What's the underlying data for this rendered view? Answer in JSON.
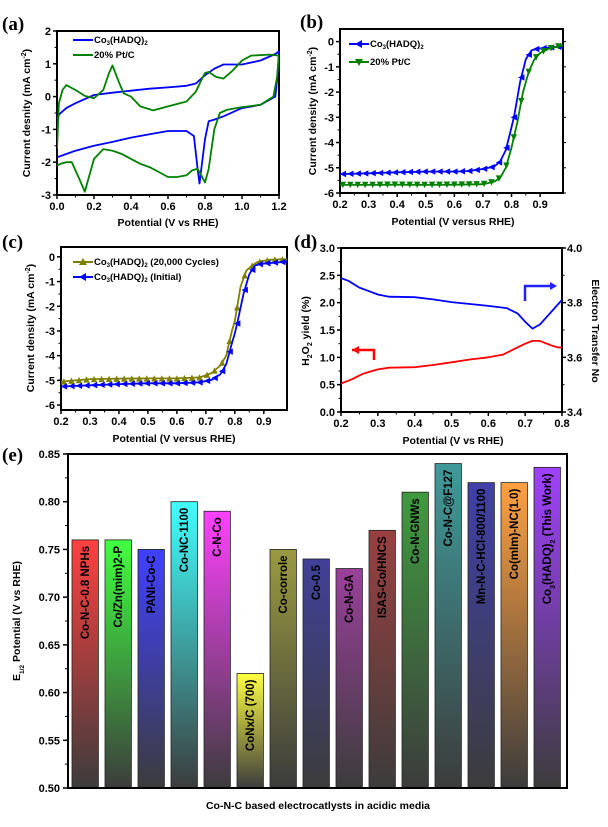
{
  "chart_data": [
    {
      "panel": "(a)",
      "type": "line",
      "title": "",
      "xlabel": "Potential (V vs RHE)",
      "ylabel": "Current desnity (mA cm-2)",
      "xlim": [
        0.0,
        1.2
      ],
      "ylim": [
        -3,
        2
      ],
      "xticks": [
        "0.0",
        "0.2",
        "0.4",
        "0.6",
        "0.8",
        "1.0",
        "1.2"
      ],
      "yticks": [
        "-3",
        "-2",
        "-1",
        "0",
        "1",
        "2"
      ],
      "legend_position": "top-left",
      "series": [
        {
          "name": "Co3(HADQ)2",
          "color": "#0000ff",
          "x": [
            0.0,
            0.01,
            0.05,
            0.1,
            0.2,
            0.3,
            0.4,
            0.5,
            0.6,
            0.7,
            0.75,
            0.8,
            0.85,
            0.9,
            1.0,
            1.1,
            1.18,
            1.2,
            1.19,
            1.18,
            1.1,
            1.0,
            0.9,
            0.85,
            0.82,
            0.8,
            0.78,
            0.77,
            0.76,
            0.74,
            0.7,
            0.6,
            0.5,
            0.4,
            0.3,
            0.2,
            0.1,
            0.05,
            0.0
          ],
          "y": [
            -0.75,
            -0.55,
            -0.35,
            -0.2,
            0.05,
            0.12,
            0.18,
            0.24,
            0.28,
            0.33,
            0.4,
            0.65,
            0.85,
            0.98,
            0.98,
            1.1,
            1.3,
            1.38,
            0.5,
            0.0,
            -0.25,
            -0.35,
            -0.6,
            -0.7,
            -0.75,
            -1.3,
            -2.2,
            -2.65,
            -2.2,
            -1.2,
            -1.05,
            -1.05,
            -1.15,
            -1.25,
            -1.38,
            -1.5,
            -1.65,
            -1.75,
            -1.85
          ]
        },
        {
          "name": "20% Pt/C",
          "color": "#008000",
          "x": [
            0.0,
            0.01,
            0.03,
            0.05,
            0.1,
            0.15,
            0.2,
            0.25,
            0.28,
            0.3,
            0.33,
            0.36,
            0.4,
            0.45,
            0.52,
            0.6,
            0.7,
            0.75,
            0.78,
            0.8,
            0.82,
            0.86,
            0.9,
            0.95,
            1.0,
            1.05,
            1.15,
            1.2,
            1.19,
            1.17,
            1.1,
            1.0,
            0.92,
            0.88,
            0.85,
            0.82,
            0.8,
            0.78,
            0.76,
            0.73,
            0.7,
            0.65,
            0.6,
            0.55,
            0.5,
            0.45,
            0.4,
            0.35,
            0.3,
            0.25,
            0.2,
            0.15,
            0.12,
            0.08,
            0.05,
            0.02,
            0.0
          ],
          "y": [
            -1.6,
            -0.2,
            0.2,
            0.35,
            0.2,
            0.02,
            -0.05,
            0.2,
            0.7,
            0.95,
            0.5,
            0.1,
            0.0,
            -0.3,
            -0.42,
            -0.3,
            -0.15,
            0.15,
            0.5,
            0.72,
            0.75,
            0.6,
            0.55,
            0.8,
            1.1,
            1.25,
            1.28,
            1.25,
            0.6,
            0.0,
            -0.25,
            -0.32,
            -0.4,
            -0.5,
            -1.0,
            -2.2,
            -2.62,
            -2.4,
            -2.2,
            -2.25,
            -2.4,
            -2.45,
            -2.45,
            -2.3,
            -2.15,
            -2.05,
            -1.9,
            -1.75,
            -1.65,
            -1.6,
            -1.9,
            -2.9,
            -2.5,
            -2.0,
            -2.0,
            -2.05,
            -2.1
          ]
        }
      ]
    },
    {
      "panel": "(b)",
      "type": "line",
      "title": "",
      "xlabel": "Potential (V versus RHE)",
      "ylabel": "Current density (mA cm-2)",
      "xlim": [
        0.2,
        0.98
      ],
      "ylim": [
        -6,
        0.5
      ],
      "xticks": [
        "0.2",
        "0.3",
        "0.4",
        "0.5",
        "0.6",
        "0.7",
        "0.8",
        "0.9"
      ],
      "yticks": [
        "-6",
        "-5",
        "-4",
        "-3",
        "-2",
        "-1",
        "0"
      ],
      "legend_position": "top-left",
      "series": [
        {
          "name": "Co3(HADQ)2",
          "color": "#0000ff",
          "marker": "left-triangle",
          "x": [
            0.2,
            0.3,
            0.4,
            0.5,
            0.6,
            0.65,
            0.7,
            0.74,
            0.76,
            0.78,
            0.8,
            0.81,
            0.83,
            0.85,
            0.87,
            0.89,
            0.92,
            0.95,
            0.98
          ],
          "y": [
            -5.25,
            -5.22,
            -5.18,
            -5.15,
            -5.15,
            -5.13,
            -5.05,
            -4.95,
            -4.75,
            -4.3,
            -3.4,
            -2.9,
            -1.6,
            -0.7,
            -0.35,
            -0.28,
            -0.25,
            -0.22,
            -0.2
          ]
        },
        {
          "name": "20% Pt/C",
          "color": "#008000",
          "marker": "down-triangle",
          "x": [
            0.2,
            0.3,
            0.4,
            0.5,
            0.6,
            0.7,
            0.74,
            0.76,
            0.78,
            0.8,
            0.82,
            0.84,
            0.86,
            0.88,
            0.9,
            0.93,
            0.96,
            0.98
          ],
          "y": [
            -5.68,
            -5.68,
            -5.67,
            -5.68,
            -5.67,
            -5.65,
            -5.55,
            -5.4,
            -5.0,
            -4.2,
            -3.2,
            -2.0,
            -1.2,
            -0.7,
            -0.45,
            -0.28,
            -0.2,
            -0.15
          ]
        }
      ]
    },
    {
      "panel": "(c)",
      "type": "line",
      "title": "",
      "xlabel": "Potential (V versus RHE)",
      "ylabel": "Current density (mA cm-2)",
      "xlim": [
        0.2,
        0.98
      ],
      "ylim": [
        -6.2,
        0.4
      ],
      "xticks": [
        "0.2",
        "0.3",
        "0.4",
        "0.5",
        "0.6",
        "0.7",
        "0.8",
        "0.9"
      ],
      "yticks": [
        "-6",
        "-5",
        "-4",
        "-3",
        "-2",
        "-1",
        "0"
      ],
      "legend_position": "top-left",
      "series": [
        {
          "name": "Co3(HADQ)2 (20,000 Cycles)",
          "color": "#808000",
          "marker": "up-triangle",
          "x": [
            0.2,
            0.3,
            0.4,
            0.5,
            0.6,
            0.68,
            0.72,
            0.75,
            0.77,
            0.79,
            0.8,
            0.82,
            0.84,
            0.86,
            0.88,
            0.92,
            0.96,
            0.98
          ],
          "y": [
            -5.05,
            -4.95,
            -4.93,
            -4.92,
            -4.92,
            -4.88,
            -4.7,
            -4.4,
            -4.0,
            -3.0,
            -2.6,
            -1.2,
            -0.55,
            -0.35,
            -0.2,
            -0.12,
            -0.1,
            -0.1
          ]
        },
        {
          "name": "Co3(HADQ)2 (Initial)",
          "color": "#0000ff",
          "marker": "left-triangle",
          "x": [
            0.2,
            0.3,
            0.4,
            0.5,
            0.6,
            0.68,
            0.72,
            0.75,
            0.77,
            0.79,
            0.8,
            0.81,
            0.83,
            0.85,
            0.87,
            0.89,
            0.92,
            0.95,
            0.98
          ],
          "y": [
            -5.25,
            -5.2,
            -5.15,
            -5.12,
            -5.12,
            -5.08,
            -4.98,
            -4.75,
            -4.35,
            -3.5,
            -3.1,
            -2.6,
            -1.5,
            -0.7,
            -0.35,
            -0.28,
            -0.25,
            -0.22,
            -0.2
          ]
        }
      ]
    },
    {
      "panel": "(d)",
      "type": "line",
      "title": "",
      "xlabel": "Potential (V vs RHE)",
      "ylabel": "H2O2 yield (%)",
      "ylabel_right": "Electron Transfer No",
      "xlim": [
        0.2,
        0.8
      ],
      "ylim": [
        0.0,
        3.0
      ],
      "ylim_right": [
        3.4,
        4.0
      ],
      "xticks": [
        "0.2",
        "0.3",
        "0.4",
        "0.5",
        "0.6",
        "0.7",
        "0.8"
      ],
      "yticks": [
        "0.0",
        "0.5",
        "1.0",
        "1.5",
        "2.0",
        "2.5",
        "3.0"
      ],
      "yticks_right": [
        "3.4",
        "3.6",
        "3.8",
        "4.0"
      ],
      "annotations": [
        "left-pointing red arrow (H2O2 yield axis)",
        "right-pointing blue arrow (Electron Transfer No axis)"
      ],
      "series": [
        {
          "name": "Electron Transfer No",
          "axis": "right",
          "color": "#0000ff",
          "x": [
            0.2,
            0.22,
            0.25,
            0.28,
            0.3,
            0.33,
            0.4,
            0.45,
            0.5,
            0.55,
            0.6,
            0.65,
            0.68,
            0.7,
            0.72,
            0.74,
            0.76,
            0.78,
            0.8
          ],
          "y": [
            3.89,
            3.88,
            3.855,
            3.84,
            3.83,
            3.822,
            3.82,
            3.812,
            3.802,
            3.795,
            3.788,
            3.78,
            3.76,
            3.73,
            3.705,
            3.72,
            3.75,
            3.78,
            3.81
          ]
        },
        {
          "name": "H2O2 yield (%)",
          "axis": "left",
          "color": "#ff0000",
          "x": [
            0.2,
            0.23,
            0.26,
            0.3,
            0.33,
            0.4,
            0.45,
            0.5,
            0.55,
            0.6,
            0.64,
            0.67,
            0.7,
            0.72,
            0.74,
            0.77,
            0.79,
            0.8
          ],
          "y": [
            0.52,
            0.6,
            0.7,
            0.78,
            0.81,
            0.82,
            0.86,
            0.91,
            0.96,
            1.0,
            1.05,
            1.15,
            1.25,
            1.3,
            1.3,
            1.22,
            1.18,
            1.18
          ]
        }
      ]
    },
    {
      "panel": "(e)",
      "type": "bar",
      "title": "",
      "xlabel": "Co-N-C based electrocatlysts in acidic media",
      "ylabel": "E1/2 Potential (V vs RHE)",
      "ylim": [
        0.5,
        0.85
      ],
      "yticks": [
        "0.50",
        "0.55",
        "0.60",
        "0.65",
        "0.70",
        "0.75",
        "0.80",
        "0.85"
      ],
      "categories": [
        "Co-N-C-0.8 NPHs",
        "Co/Zn(mim)2-P",
        "PANI-Co-C",
        "Co-NC-1100",
        "C-N-Co",
        "CoNx/C (700)",
        "Co-corrole",
        "Co-0.5",
        "Co-N-GA",
        "ISAS-Co/HNCS",
        "Co-N-GNWs",
        "Co-N-C@F127",
        "Mn-N-C-HCl-800/1100",
        "Co(mIm)-NC(1.0)",
        "Co3(HADQ)2 (This Work)"
      ],
      "values": [
        0.76,
        0.76,
        0.75,
        0.8,
        0.79,
        0.62,
        0.75,
        0.74,
        0.73,
        0.77,
        0.81,
        0.84,
        0.82,
        0.82,
        0.836
      ],
      "colors": [
        "#ff4040",
        "#40ff40",
        "#4040ff",
        "#40ffff",
        "#ff40ff",
        "#ffff40",
        "#9a9a40",
        "#404099",
        "#9a409a",
        "#9a4040",
        "#409a40",
        "#409a9a",
        "#4040a8",
        "#ffa040",
        "#a040ff"
      ]
    }
  ],
  "panel_labels": [
    "(a)",
    "(b)",
    "(c)",
    "(d)",
    "(e)"
  ],
  "legend_text": {
    "a_s1_main": "Co",
    "a_s1_sub": "3",
    "a_s1_rest": "(HADQ)",
    "a_s1_sub2": "2",
    "a_s2": "20% Pt/C",
    "b_s1_main": "Co",
    "b_s1_sub": "3",
    "b_s1_rest": "(HADQ)",
    "b_s1_sub2": "2",
    "b_s2": "20% Pt/C",
    "c_s1_main": "Co",
    "c_s1_sub": "3",
    "c_s1_rest": "(HADQ)",
    "c_s1_sub2": "2",
    "c_s1_tail": " (20,000 Cycles)",
    "c_s2_main": "Co",
    "c_s2_sub": "3",
    "c_s2_rest": "(HADQ)",
    "c_s2_sub2": "2",
    "c_s2_tail": " (Initial)"
  },
  "axis_text": {
    "a_ylabel": "Current desnity (mA cm",
    "a_ylabel_sup": "-2",
    "a_ylabel_end": ")",
    "bc_ylabel": "Current density (mA cm",
    "bc_ylabel_sup": "-2",
    "bc_ylabel_end": ")",
    "d_ylabel_pre": "H",
    "d_ylabel_sub1": "2",
    "d_ylabel_mid": "O",
    "d_ylabel_sub2": "2",
    "d_ylabel_post": " yield (%)",
    "d_ylabel_right": "Electron Transfer No",
    "e_ylabel_pre": "E",
    "e_ylabel_sub": "1/2",
    "e_ylabel_post": " Potential (V vs RHE)",
    "e_last_main": "Co",
    "e_last_sub": "3",
    "e_last_rest": "(HADQ)",
    "e_last_sub2": "2",
    "e_last_tail": "  (This Work)"
  }
}
